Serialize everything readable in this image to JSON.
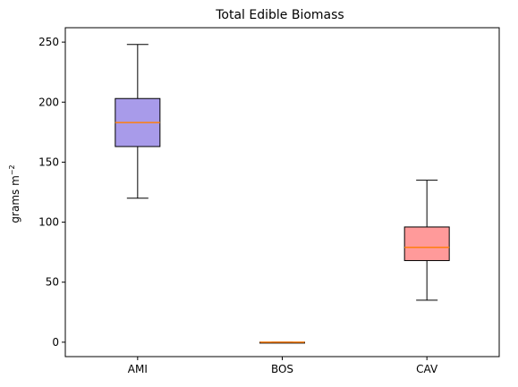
{
  "chart_data": {
    "type": "box",
    "title": "Total Edible Biomass",
    "xlabel": "",
    "ylabel": "grams m",
    "ylabel_superscript": "−2",
    "ylim": [
      -12,
      262
    ],
    "yticks": [
      0,
      50,
      100,
      150,
      200,
      250
    ],
    "categories": [
      "AMI",
      "BOS",
      "CAV"
    ],
    "boxes": [
      {
        "category": "AMI",
        "whisker_low": 120,
        "q1": 163,
        "median": 183,
        "q3": 203,
        "whisker_high": 248,
        "fill": "#a89bea"
      },
      {
        "category": "BOS",
        "whisker_low": 0,
        "q1": 0,
        "median": 0,
        "q3": 0,
        "whisker_high": 0,
        "fill": "#a89bea"
      },
      {
        "category": "CAV",
        "whisker_low": 35,
        "q1": 68,
        "median": 79,
        "q3": 96,
        "whisker_high": 135,
        "fill": "#ff9a9a"
      }
    ],
    "colors": {
      "median": "#ff7f0e",
      "edge": "#000000",
      "background": "#ffffff"
    },
    "grid": false,
    "legend": "none"
  }
}
